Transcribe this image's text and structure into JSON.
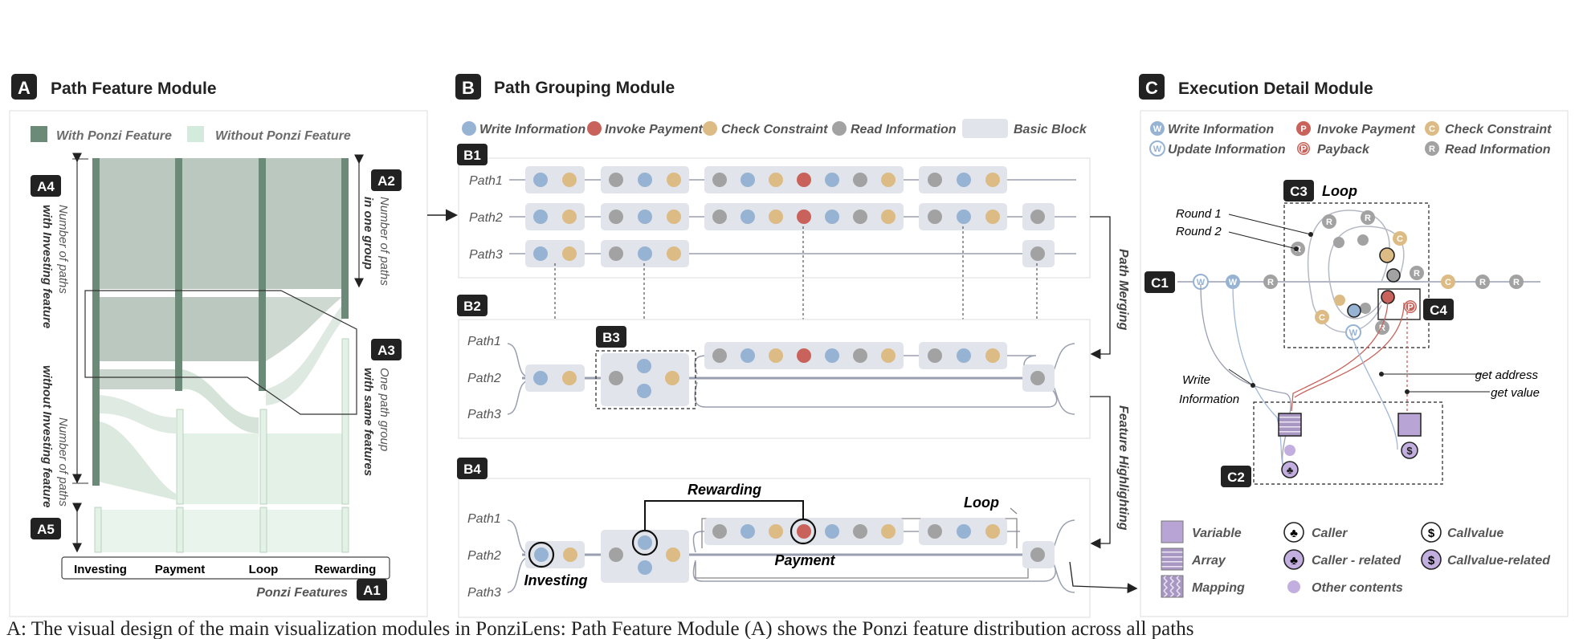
{
  "panelA": {
    "badge": "A",
    "title": "Path Feature Module",
    "legend": {
      "with": "With Ponzi Feature",
      "without": "Without Ponzi Feature"
    },
    "axis_labels": [
      "Investing",
      "Payment",
      "Loop",
      "Rewarding"
    ],
    "axis_title": "Ponzi Features",
    "tags": {
      "A1": "A1",
      "A2": "A2",
      "A3": "A3",
      "A4": "A4",
      "A5": "A5"
    },
    "ann_a2": [
      "Number of paths",
      "in one group"
    ],
    "ann_a3": [
      "One path group",
      "with same features"
    ],
    "ann_a4_top": [
      "Number of paths",
      "with Investing feature"
    ],
    "ann_a4_bottom": [
      "Number of paths",
      "without Investing feature"
    ],
    "colors": {
      "with": "#6b8a78",
      "without": "#d3ebdc"
    }
  },
  "panelB": {
    "badge": "B",
    "title": "Path Grouping Module",
    "legend": {
      "write": "Write Information",
      "invoke": "Invoke Payment",
      "check": "Check Constraint",
      "read": "Read Information",
      "block": "Basic Block"
    },
    "tags": {
      "B1": "B1",
      "B2": "B2",
      "B3": "B3",
      "B4": "B4"
    },
    "paths": [
      "Path1",
      "Path2",
      "Path3"
    ],
    "side_labels": {
      "merging": "Path Merging",
      "highlighting": "Feature Highlighting"
    },
    "b4_labels": {
      "rewarding": "Rewarding",
      "loop": "Loop",
      "payment": "Payment",
      "investing": "Investing"
    },
    "colors": {
      "write": "#97b3d4",
      "invoke": "#c8625a",
      "check": "#ddbb84",
      "read": "#a2a2a2",
      "block": "#e1e4ea"
    }
  },
  "panelC": {
    "badge": "C",
    "title": "Execution Detail Module",
    "legend": {
      "write": "Write Information",
      "update": "Update Information",
      "invoke": "Invoke Payment",
      "payback": "Payback",
      "check": "Check Constraint",
      "read": "Read Information"
    },
    "glyph_letters": {
      "write": "W",
      "invoke": "P",
      "check": "C",
      "read": "R"
    },
    "tags": {
      "C1": "C1",
      "C2": "C2",
      "C3": "C3",
      "C4": "C4"
    },
    "loop_label": "Loop",
    "rounds": [
      "Round 1",
      "Round 2"
    ],
    "annotations": {
      "write_info": [
        "Write",
        "Information"
      ],
      "get_address": "get address",
      "get_value": "get value"
    },
    "bottom_legend": {
      "variable": "Variable",
      "array": "Array",
      "mapping": "Mapping",
      "caller": "Caller",
      "caller_related": "Caller - related",
      "other": "Other contents",
      "callvalue": "Callvalue",
      "callvalue_related": "Callvalue-related"
    }
  },
  "caption": "A: The visual design of the main visualization modules in PonziLens: Path Feature Module (A) shows the Ponzi feature distribution across all paths"
}
